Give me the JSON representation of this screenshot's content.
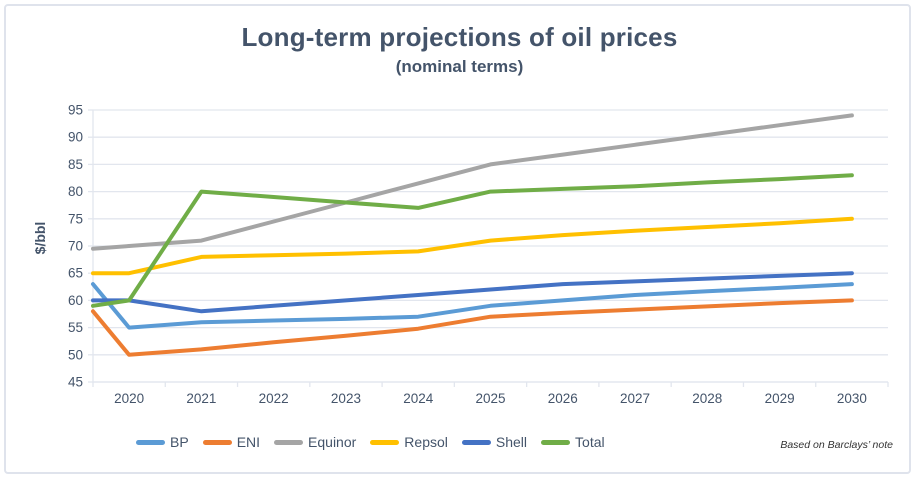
{
  "chart_data": {
    "type": "line",
    "title": "Long-term projections of oil prices",
    "subtitle": "(nominal terms)",
    "ylabel": "$/bbl",
    "source_note": "Based on Barclays’ note",
    "ylim": [
      45,
      95
    ],
    "yticks": [
      95,
      90,
      85,
      80,
      75,
      70,
      65,
      60,
      55,
      50,
      45
    ],
    "categories": [
      "2020",
      "2021",
      "2022",
      "2023",
      "2024",
      "2025",
      "2026",
      "2027",
      "2028",
      "2029",
      "2030"
    ],
    "grid": true,
    "legend_position": "bottom",
    "axis_text_color": "#44546A",
    "gridline_color": "#E2E6EE",
    "series": [
      {
        "name": "BP",
        "color": "#5B9BD5",
        "edge_start": 63,
        "values": [
          55,
          56,
          56.3,
          56.6,
          57,
          59,
          60,
          61,
          61.7,
          62.3,
          63
        ]
      },
      {
        "name": "ENI",
        "color": "#ED7D31",
        "edge_start": 58,
        "values": [
          50,
          51,
          52.3,
          53.5,
          54.8,
          57,
          57.7,
          58.3,
          58.9,
          59.5,
          60
        ]
      },
      {
        "name": "Equinor",
        "color": "#A5A5A5",
        "edge_start": 69.5,
        "values": [
          70,
          71,
          74.5,
          78,
          81.5,
          85,
          86.8,
          88.6,
          90.4,
          92.2,
          94
        ]
      },
      {
        "name": "Repsol",
        "color": "#FFC000",
        "edge_start": 65,
        "values": [
          65,
          68,
          68.3,
          68.6,
          69,
          71,
          72,
          72.8,
          73.5,
          74.2,
          75
        ]
      },
      {
        "name": "Shell",
        "color": "#4472C4",
        "edge_start": 60,
        "values": [
          60,
          58,
          59,
          60,
          61,
          62,
          63,
          63.5,
          64,
          64.5,
          65
        ]
      },
      {
        "name": "Total",
        "color": "#70AD47",
        "edge_start": 59,
        "values": [
          60,
          80,
          79,
          78,
          77,
          80,
          80.5,
          81,
          81.7,
          82.3,
          83
        ]
      }
    ]
  }
}
